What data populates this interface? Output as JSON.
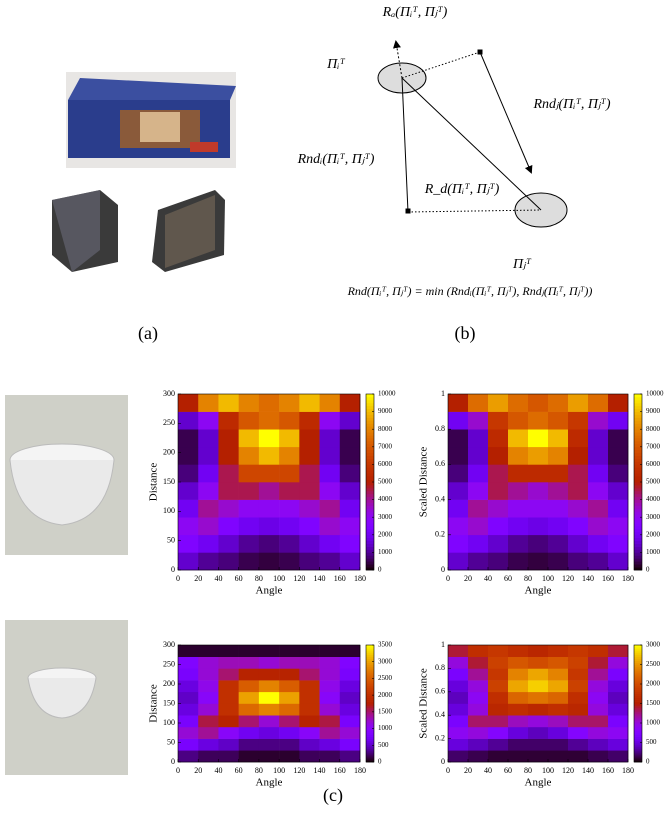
{
  "panel_a": {
    "label": "(a)"
  },
  "panel_b": {
    "label": "(b)",
    "pi_i": "Πᵢᵀ",
    "pi_j": "Πⱼᵀ",
    "r_a": "Rₐ(Πᵢᵀ, Πⱼᵀ)",
    "r_nd_j": "Rndⱼ(Πᵢᵀ, Πⱼᵀ)",
    "r_nd_i": "Rndᵢ(Πᵢᵀ, Πⱼᵀ)",
    "r_d": "R_d(Πᵢᵀ, Πⱼᵀ)",
    "equation": "Rnd(Πᵢᵀ, Πⱼᵀ) = min (Rndᵢ(Πᵢᵀ, Πⱼᵀ), Rndⱼ(Πᵢᵀ, Πⱼᵀ))"
  },
  "panel_c": {
    "label": "(c)",
    "heatmaps": [
      {
        "xlabel": "Angle",
        "ylabel": "Distance",
        "xlim": [
          0,
          180
        ],
        "xticks": [
          0,
          20,
          40,
          60,
          80,
          100,
          120,
          140,
          160,
          180
        ],
        "ylim": [
          0,
          300
        ],
        "yticks": [
          0,
          50,
          100,
          150,
          200,
          250,
          300
        ],
        "clim": [
          0,
          10000
        ],
        "cticks": [
          0,
          1000,
          2000,
          3000,
          4000,
          5000,
          6000,
          7000,
          8000,
          9000,
          10000
        ],
        "z": [
          [
            1500,
            1000,
            800,
            500,
            400,
            500,
            800,
            1000,
            1500
          ],
          [
            2500,
            2000,
            1500,
            1000,
            800,
            1000,
            1500,
            2000,
            2500
          ],
          [
            3000,
            3500,
            2500,
            2000,
            1800,
            2000,
            2500,
            3500,
            3000
          ],
          [
            2000,
            4000,
            3500,
            3000,
            3000,
            3000,
            3500,
            4000,
            2000
          ],
          [
            1500,
            3000,
            4500,
            4500,
            4000,
            4500,
            4500,
            3000,
            1500
          ],
          [
            800,
            2000,
            4500,
            6500,
            6500,
            6500,
            4500,
            2000,
            800
          ],
          [
            500,
            1500,
            5000,
            8000,
            9000,
            8000,
            5000,
            1500,
            500
          ],
          [
            500,
            1500,
            5000,
            9000,
            10000,
            9000,
            5000,
            1500,
            500
          ],
          [
            1500,
            3000,
            5500,
            7000,
            7500,
            7000,
            5500,
            3000,
            1500
          ],
          [
            5000,
            8000,
            9000,
            8000,
            7500,
            8000,
            9000,
            8000,
            5000
          ]
        ]
      },
      {
        "xlabel": "Angle",
        "ylabel": "Scaled Distance",
        "xlim": [
          0,
          180
        ],
        "xticks": [
          0,
          20,
          40,
          60,
          80,
          100,
          120,
          140,
          160,
          180
        ],
        "ylim": [
          0,
          1
        ],
        "yticks": [
          0,
          0.2,
          0.4,
          0.6,
          0.8,
          1
        ],
        "clim": [
          0,
          10000
        ],
        "cticks": [
          0,
          1000,
          2000,
          3000,
          4000,
          5000,
          6000,
          7000,
          8000,
          9000,
          10000
        ],
        "z": [
          [
            1500,
            1000,
            800,
            500,
            400,
            500,
            800,
            1000,
            1500
          ],
          [
            2500,
            2000,
            1500,
            1000,
            800,
            1000,
            1500,
            2000,
            2500
          ],
          [
            3000,
            3500,
            2500,
            2000,
            1800,
            2000,
            2500,
            3500,
            3000
          ],
          [
            2000,
            4000,
            3500,
            3000,
            3000,
            3000,
            3500,
            4000,
            2000
          ],
          [
            1500,
            3000,
            4500,
            4000,
            3500,
            4000,
            4500,
            3000,
            1500
          ],
          [
            800,
            2000,
            4500,
            5500,
            5500,
            5500,
            4500,
            2000,
            800
          ],
          [
            500,
            1500,
            5000,
            8000,
            8500,
            8000,
            5000,
            1500,
            500
          ],
          [
            500,
            1500,
            5500,
            9000,
            10000,
            9000,
            5500,
            1500,
            500
          ],
          [
            2000,
            3500,
            6000,
            7000,
            7500,
            7000,
            6000,
            3500,
            2000
          ],
          [
            5000,
            7500,
            8500,
            7500,
            7000,
            7500,
            8500,
            7500,
            5000
          ]
        ]
      },
      {
        "xlabel": "Angle",
        "ylabel": "Distance",
        "xlim": [
          0,
          180
        ],
        "xticks": [
          0,
          20,
          40,
          60,
          80,
          100,
          120,
          140,
          160,
          180
        ],
        "ylim": [
          0,
          300
        ],
        "yticks": [
          0,
          50,
          100,
          150,
          200,
          250,
          300
        ],
        "clim": [
          0,
          3500
        ],
        "cticks": [
          0,
          500,
          1000,
          1500,
          2000,
          2500,
          3000,
          3500
        ],
        "z": [
          [
            300,
            200,
            200,
            100,
            100,
            100,
            200,
            200,
            300
          ],
          [
            800,
            600,
            500,
            300,
            300,
            300,
            500,
            600,
            800
          ],
          [
            1200,
            1400,
            1000,
            700,
            600,
            700,
            1000,
            1400,
            1200
          ],
          [
            800,
            1600,
            1800,
            1500,
            1200,
            1500,
            1800,
            1600,
            800
          ],
          [
            600,
            1200,
            2000,
            2600,
            2800,
            2600,
            2000,
            1200,
            600
          ],
          [
            500,
            1000,
            2000,
            3000,
            3500,
            3000,
            2000,
            1000,
            500
          ],
          [
            600,
            1100,
            2000,
            2500,
            2800,
            2500,
            2000,
            1100,
            600
          ],
          [
            800,
            1200,
            1500,
            1800,
            1800,
            1800,
            1500,
            1200,
            800
          ],
          [
            900,
            1200,
            1300,
            1300,
            1200,
            1300,
            1300,
            1200,
            900
          ],
          [
            100,
            100,
            100,
            100,
            100,
            100,
            100,
            100,
            100
          ]
        ]
      },
      {
        "xlabel": "Angle",
        "ylabel": "Scaled Distance",
        "xlim": [
          0,
          180
        ],
        "xticks": [
          0,
          20,
          40,
          60,
          80,
          100,
          120,
          140,
          160,
          180
        ],
        "ylim": [
          0,
          1
        ],
        "yticks": [
          0,
          0.2,
          0.4,
          0.6,
          0.8,
          1
        ],
        "clim": [
          0,
          3000
        ],
        "cticks": [
          0,
          500,
          1000,
          1500,
          2000,
          2500,
          3000
        ],
        "z": [
          [
            200,
            150,
            100,
            100,
            100,
            100,
            100,
            150,
            200
          ],
          [
            500,
            400,
            300,
            200,
            200,
            200,
            300,
            400,
            500
          ],
          [
            900,
            1000,
            800,
            500,
            400,
            500,
            800,
            1000,
            900
          ],
          [
            700,
            1300,
            1300,
            1100,
            1000,
            1100,
            1300,
            1300,
            700
          ],
          [
            500,
            1000,
            1600,
            1700,
            1600,
            1700,
            1600,
            1000,
            500
          ],
          [
            400,
            900,
            1700,
            2200,
            2300,
            2200,
            1700,
            900,
            400
          ],
          [
            500,
            1000,
            1900,
            2600,
            2800,
            2600,
            1900,
            1000,
            500
          ],
          [
            700,
            1200,
            1800,
            2400,
            2600,
            2400,
            1800,
            1200,
            700
          ],
          [
            1000,
            1400,
            1900,
            2100,
            2000,
            2100,
            1900,
            1400,
            1000
          ],
          [
            1400,
            1700,
            1800,
            1700,
            1600,
            1700,
            1800,
            1700,
            1400
          ]
        ]
      }
    ]
  }
}
